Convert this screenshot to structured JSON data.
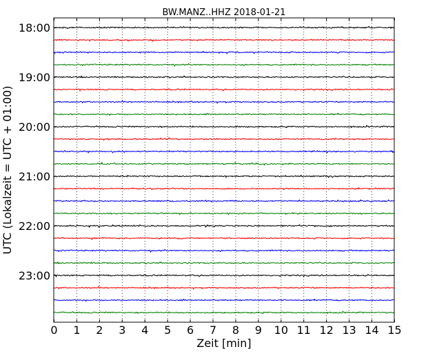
{
  "chart_data": {
    "type": "line",
    "title": "BW.MANZ..HHZ 2018-01-21",
    "xlabel": "Zeit  [min]",
    "ylabel": "UTC (Lokalzeit = UTC + 01:00)",
    "xlim": [
      0,
      15
    ],
    "x_ticks": [
      0,
      1,
      2,
      3,
      4,
      5,
      6,
      7,
      8,
      9,
      10,
      11,
      12,
      13,
      14,
      15
    ],
    "x_tick_labels": [
      "0",
      "1",
      "2",
      "3",
      "4",
      "5",
      "6",
      "7",
      "8",
      "9",
      "10",
      "11",
      "12",
      "13",
      "14",
      "15"
    ],
    "y_tick_labels": [
      "18:00",
      "19:00",
      "20:00",
      "21:00",
      "22:00",
      "23:00"
    ],
    "grid": "vertical dotted",
    "trace_count": 24,
    "trace_minutes": 15,
    "colors": [
      "#000000",
      "#ff0000",
      "#0000ff",
      "#008000"
    ]
  }
}
